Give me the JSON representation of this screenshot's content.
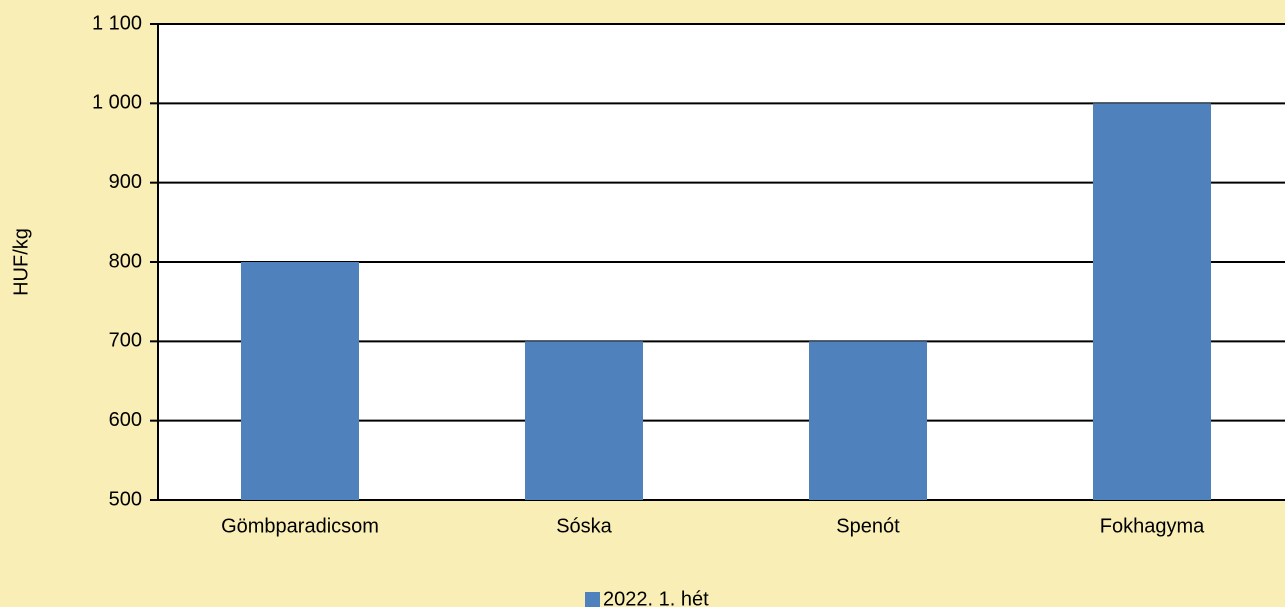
{
  "chart_data": {
    "type": "bar",
    "y_label": "HUF/kg",
    "categories": [
      "Gömbparadicsom",
      "Sóska",
      "Spenót",
      "Fokhagyma"
    ],
    "series": [
      {
        "name": "2022. 1. hét",
        "color": "#4f81bd",
        "values": [
          800,
          700,
          700,
          1000
        ]
      }
    ],
    "ylim": [
      500,
      1100
    ],
    "yticks": [
      500,
      600,
      700,
      800,
      900,
      {
        "value": 1000,
        "label": "1 000"
      },
      {
        "value": 1100,
        "label": "1 100"
      }
    ],
    "grid": true,
    "legend": "bottom"
  }
}
